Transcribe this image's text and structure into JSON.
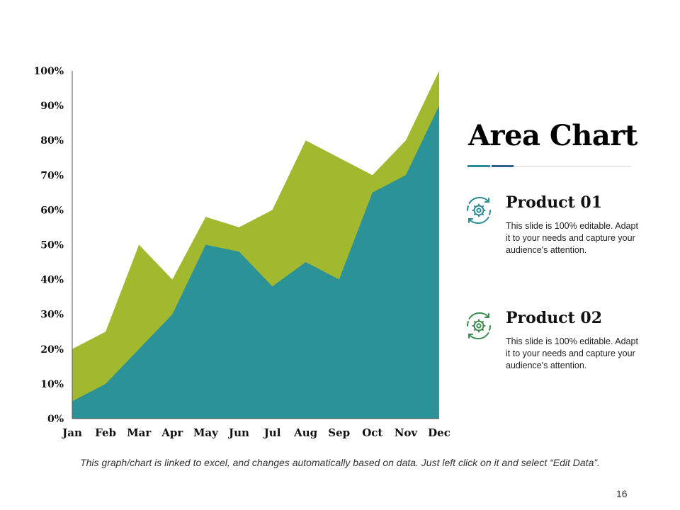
{
  "chart_data": {
    "type": "area",
    "categories": [
      "Jan",
      "Feb",
      "Mar",
      "Apr",
      "May",
      "Jun",
      "Jul",
      "Aug",
      "Sep",
      "Oct",
      "Nov",
      "Dec"
    ],
    "series": [
      {
        "name": "",
        "color": "#a2b82f",
        "values": [
          20,
          25,
          50,
          40,
          58,
          55,
          60,
          80,
          75,
          70,
          80,
          100
        ]
      },
      {
        "name": "",
        "color": "#2b9297",
        "values": [
          5,
          10,
          20,
          30,
          50,
          48,
          38,
          45,
          40,
          65,
          70,
          90
        ]
      }
    ],
    "yticks": [
      "0%",
      "10%",
      "20%",
      "30%",
      "40%",
      "50%",
      "60%",
      "70%",
      "80%",
      "90%",
      "100%"
    ],
    "ylim": [
      0,
      100
    ],
    "grid": false
  },
  "heading": {
    "title": "Area Chart"
  },
  "products": [
    {
      "name": "Product 01",
      "desc": "This slide is 100% editable. Adapt it to your needs and capture your audience's attention.",
      "icon": "gear-cycle-icon",
      "icon_color": "#2a8a93"
    },
    {
      "name": "Product 02",
      "desc": "This slide is 100% editable. Adapt it to your needs and capture your audience's attention.",
      "icon": "gear-cycle-icon",
      "icon_color": "#3c8a4f"
    }
  ],
  "footnote": "This graph/chart is linked to excel, and changes automatically based on data. Just left click on it and select “Edit Data”.",
  "page_number": "16"
}
